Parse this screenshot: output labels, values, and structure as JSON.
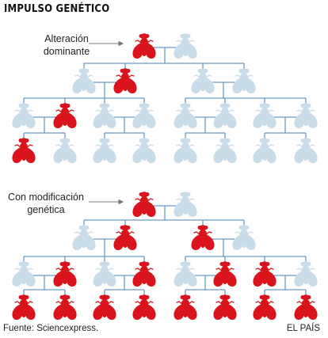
{
  "title": "IMPULSO GENÉTICO",
  "panels": [
    {
      "label_line1": "Alteración",
      "label_line2": "dominante"
    },
    {
      "label_line1": "Con modificación",
      "label_line2": "genética"
    }
  ],
  "footer": {
    "source": "Fuente: Sciencexpress.",
    "credit": "EL PAÍS"
  },
  "colors": {
    "mutant": "#d9141c",
    "normal": "#c9dce9",
    "line": "#6a9bc5",
    "text": "#222222"
  },
  "legend_meaning": {
    "mutant_icon": "fly-red-icon",
    "normal_icon": "fly-pale-blue-icon"
  },
  "trees": [
    {
      "generations": [
        [
          "mutant",
          "normal"
        ],
        [
          "normal",
          "mutant",
          "normal",
          "normal"
        ],
        [
          "normal",
          "mutant",
          "normal",
          "normal",
          "normal",
          "normal",
          "normal",
          "normal"
        ],
        [
          "mutant",
          "normal",
          "normal",
          "normal",
          "normal",
          "normal",
          "normal",
          "normal"
        ]
      ]
    },
    {
      "generations": [
        [
          "mutant",
          "normal"
        ],
        [
          "normal",
          "mutant",
          "mutant",
          "normal"
        ],
        [
          "normal",
          "mutant",
          "normal",
          "mutant",
          "normal",
          "mutant",
          "mutant",
          "normal"
        ],
        [
          "mutant",
          "mutant",
          "mutant",
          "mutant",
          "mutant",
          "mutant",
          "mutant",
          "mutant"
        ]
      ]
    }
  ]
}
